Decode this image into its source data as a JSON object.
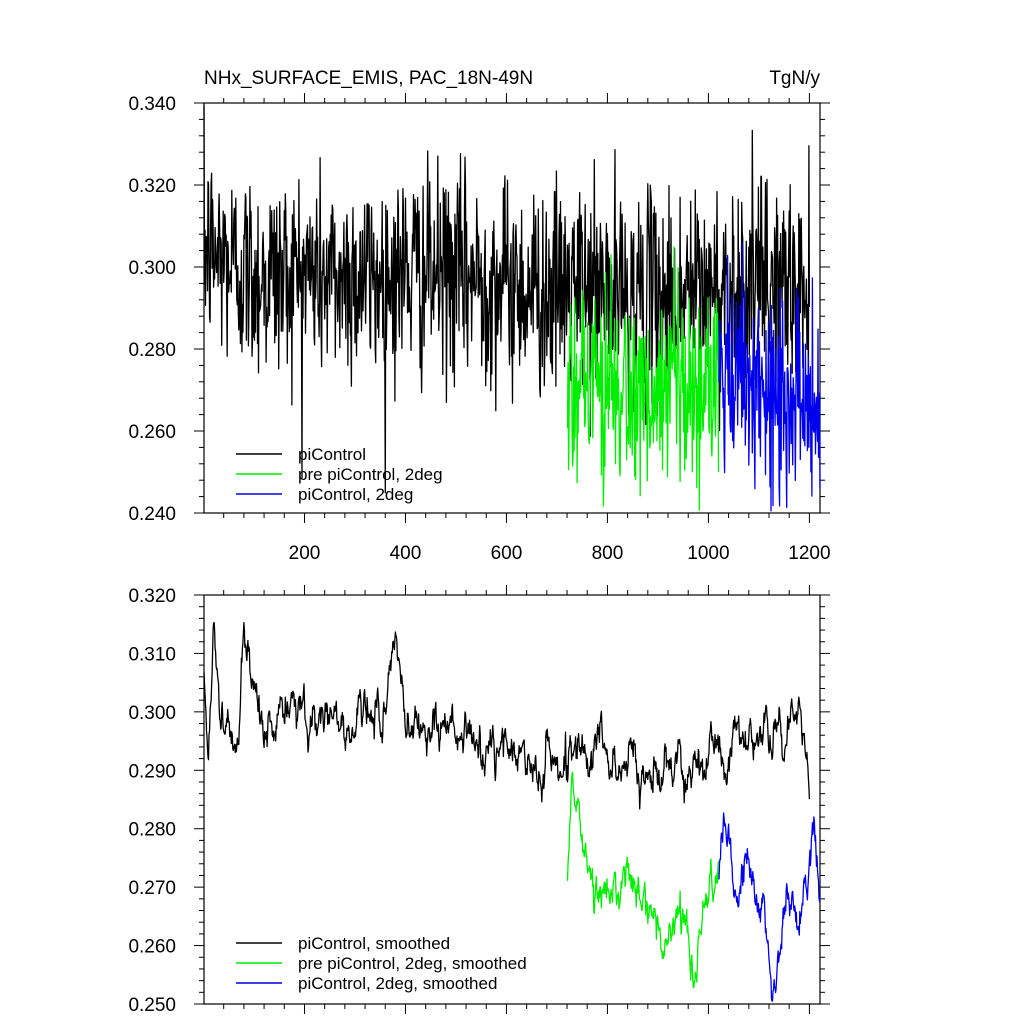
{
  "chart_data": [
    {
      "type": "line",
      "title": "NHx_SURFACE_EMIS, PAC_18N-49N",
      "units": "TgN/y",
      "xlim": [
        1,
        1221
      ],
      "ylim": [
        0.24,
        0.34
      ],
      "x_ticks": [
        200,
        400,
        600,
        800,
        1000,
        1200
      ],
      "x_tick_labels": [
        "200",
        "400",
        "600",
        "800",
        "1000",
        "1200"
      ],
      "y_ticks": [
        0.24,
        0.26,
        0.28,
        0.3,
        0.32,
        0.34
      ],
      "y_tick_labels": [
        "0.240",
        "0.260",
        "0.280",
        "0.300",
        "0.320",
        "0.340"
      ],
      "legend_placement": "bottom-left",
      "series": [
        {
          "name": "piControl",
          "color": "#000000",
          "x_range": [
            1,
            1200
          ],
          "approx_points": [
            [
              1,
              0.305
            ],
            [
              50,
              0.301
            ],
            [
              100,
              0.298
            ],
            [
              150,
              0.298
            ],
            [
              200,
              0.299
            ],
            [
              250,
              0.297
            ],
            [
              300,
              0.298
            ],
            [
              350,
              0.297
            ],
            [
              400,
              0.299
            ],
            [
              450,
              0.298
            ],
            [
              500,
              0.298
            ],
            [
              550,
              0.297
            ],
            [
              600,
              0.296
            ],
            [
              650,
              0.295
            ],
            [
              700,
              0.294
            ],
            [
              750,
              0.295
            ],
            [
              800,
              0.294
            ],
            [
              850,
              0.293
            ],
            [
              900,
              0.293
            ],
            [
              950,
              0.294
            ],
            [
              1000,
              0.294
            ],
            [
              1050,
              0.295
            ],
            [
              1100,
              0.296
            ],
            [
              1150,
              0.296
            ],
            [
              1200,
              0.292
            ]
          ]
        },
        {
          "name": "pre piControl, 2deg",
          "color": "#00ee00",
          "x_range": [
            721,
            1020
          ],
          "approx_points": [
            [
              721,
              0.272
            ],
            [
              750,
              0.276
            ],
            [
              800,
              0.27
            ],
            [
              850,
              0.268
            ],
            [
              900,
              0.266
            ],
            [
              950,
              0.268
            ],
            [
              1000,
              0.27
            ],
            [
              1020,
              0.272
            ]
          ]
        },
        {
          "name": "piControl, 2deg",
          "color": "#0000ee",
          "x_range": [
            1021,
            1221
          ],
          "approx_points": [
            [
              1021,
              0.272
            ],
            [
              1050,
              0.271
            ],
            [
              1100,
              0.268
            ],
            [
              1150,
              0.268
            ],
            [
              1200,
              0.268
            ],
            [
              1221,
              0.27
            ]
          ]
        }
      ]
    },
    {
      "type": "line",
      "xlim": [
        1,
        1221
      ],
      "ylim": [
        0.25,
        0.32
      ],
      "y_ticks": [
        0.25,
        0.26,
        0.27,
        0.28,
        0.29,
        0.3,
        0.31,
        0.32
      ],
      "y_tick_labels": [
        "0.250",
        "0.260",
        "0.270",
        "0.280",
        "0.290",
        "0.300",
        "0.310",
        "0.320"
      ],
      "legend_placement": "bottom-left",
      "series": [
        {
          "name": "piControl, smoothed",
          "color": "#000000",
          "x_range": [
            1,
            1200
          ],
          "approx_points": [
            [
              1,
              0.306
            ],
            [
              10,
              0.292
            ],
            [
              20,
              0.316
            ],
            [
              35,
              0.3
            ],
            [
              50,
              0.297
            ],
            [
              70,
              0.294
            ],
            [
              80,
              0.313
            ],
            [
              100,
              0.297
            ],
            [
              150,
              0.299
            ],
            [
              200,
              0.3
            ],
            [
              250,
              0.299
            ],
            [
              300,
              0.298
            ],
            [
              350,
              0.299
            ],
            [
              380,
              0.311
            ],
            [
              400,
              0.298
            ],
            [
              450,
              0.298
            ],
            [
              500,
              0.296
            ],
            [
              550,
              0.293
            ],
            [
              600,
              0.293
            ],
            [
              650,
              0.291
            ],
            [
              700,
              0.291
            ],
            [
              750,
              0.295
            ],
            [
              800,
              0.293
            ],
            [
              850,
              0.29
            ],
            [
              900,
              0.289
            ],
            [
              950,
              0.292
            ],
            [
              1000,
              0.293
            ],
            [
              1050,
              0.295
            ],
            [
              1100,
              0.296
            ],
            [
              1150,
              0.296
            ],
            [
              1180,
              0.302
            ],
            [
              1200,
              0.285
            ]
          ]
        },
        {
          "name": "pre piControl, 2deg, smoothed",
          "color": "#00ee00",
          "x_range": [
            721,
            1020
          ],
          "approx_points": [
            [
              721,
              0.271
            ],
            [
              730,
              0.288
            ],
            [
              750,
              0.277
            ],
            [
              780,
              0.271
            ],
            [
              800,
              0.272
            ],
            [
              850,
              0.27
            ],
            [
              880,
              0.266
            ],
            [
              900,
              0.265
            ],
            [
              950,
              0.266
            ],
            [
              970,
              0.256
            ],
            [
              1000,
              0.27
            ],
            [
              1020,
              0.273
            ]
          ]
        },
        {
          "name": "piControl, 2deg, smoothed",
          "color": "#0000ee",
          "x_range": [
            1021,
            1221
          ],
          "approx_points": [
            [
              1021,
              0.273
            ],
            [
              1030,
              0.282
            ],
            [
              1050,
              0.267
            ],
            [
              1080,
              0.274
            ],
            [
              1100,
              0.267
            ],
            [
              1130,
              0.255
            ],
            [
              1150,
              0.269
            ],
            [
              1180,
              0.266
            ],
            [
              1200,
              0.272
            ],
            [
              1210,
              0.28
            ],
            [
              1221,
              0.27
            ]
          ]
        }
      ]
    }
  ]
}
